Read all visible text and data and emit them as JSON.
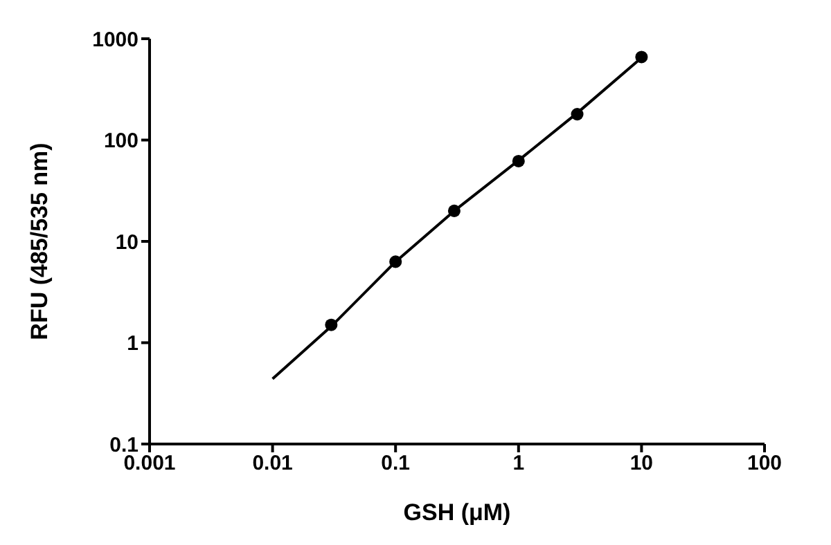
{
  "chart_data": {
    "type": "scatter",
    "xlabel": "GSH (μM)",
    "ylabel": "RFU (485/535 nm)",
    "log": "xy",
    "grid": false,
    "legend": false,
    "xlim": [
      0.001,
      100
    ],
    "xticks": [
      0.001,
      0.01,
      0.1,
      1,
      10,
      100
    ],
    "ylim": [
      0.1,
      1000
    ],
    "yticks": [
      0.1,
      1,
      10,
      100,
      1000
    ],
    "series": [
      {
        "color": "#000000",
        "marker": "circle",
        "x": [
          0.03,
          0.1,
          0.3,
          1,
          3,
          10
        ],
        "values": [
          1.5,
          6.3,
          20,
          62,
          180,
          660
        ]
      },
      {
        "type": "line",
        "color": "#000000",
        "marker": "none",
        "line_style": "solid",
        "x": [
          0.01,
          0.03,
          0.1,
          0.3,
          1,
          3,
          10
        ],
        "values": [
          0.44,
          1.45,
          6.3,
          20,
          63,
          185,
          650
        ]
      }
    ]
  }
}
